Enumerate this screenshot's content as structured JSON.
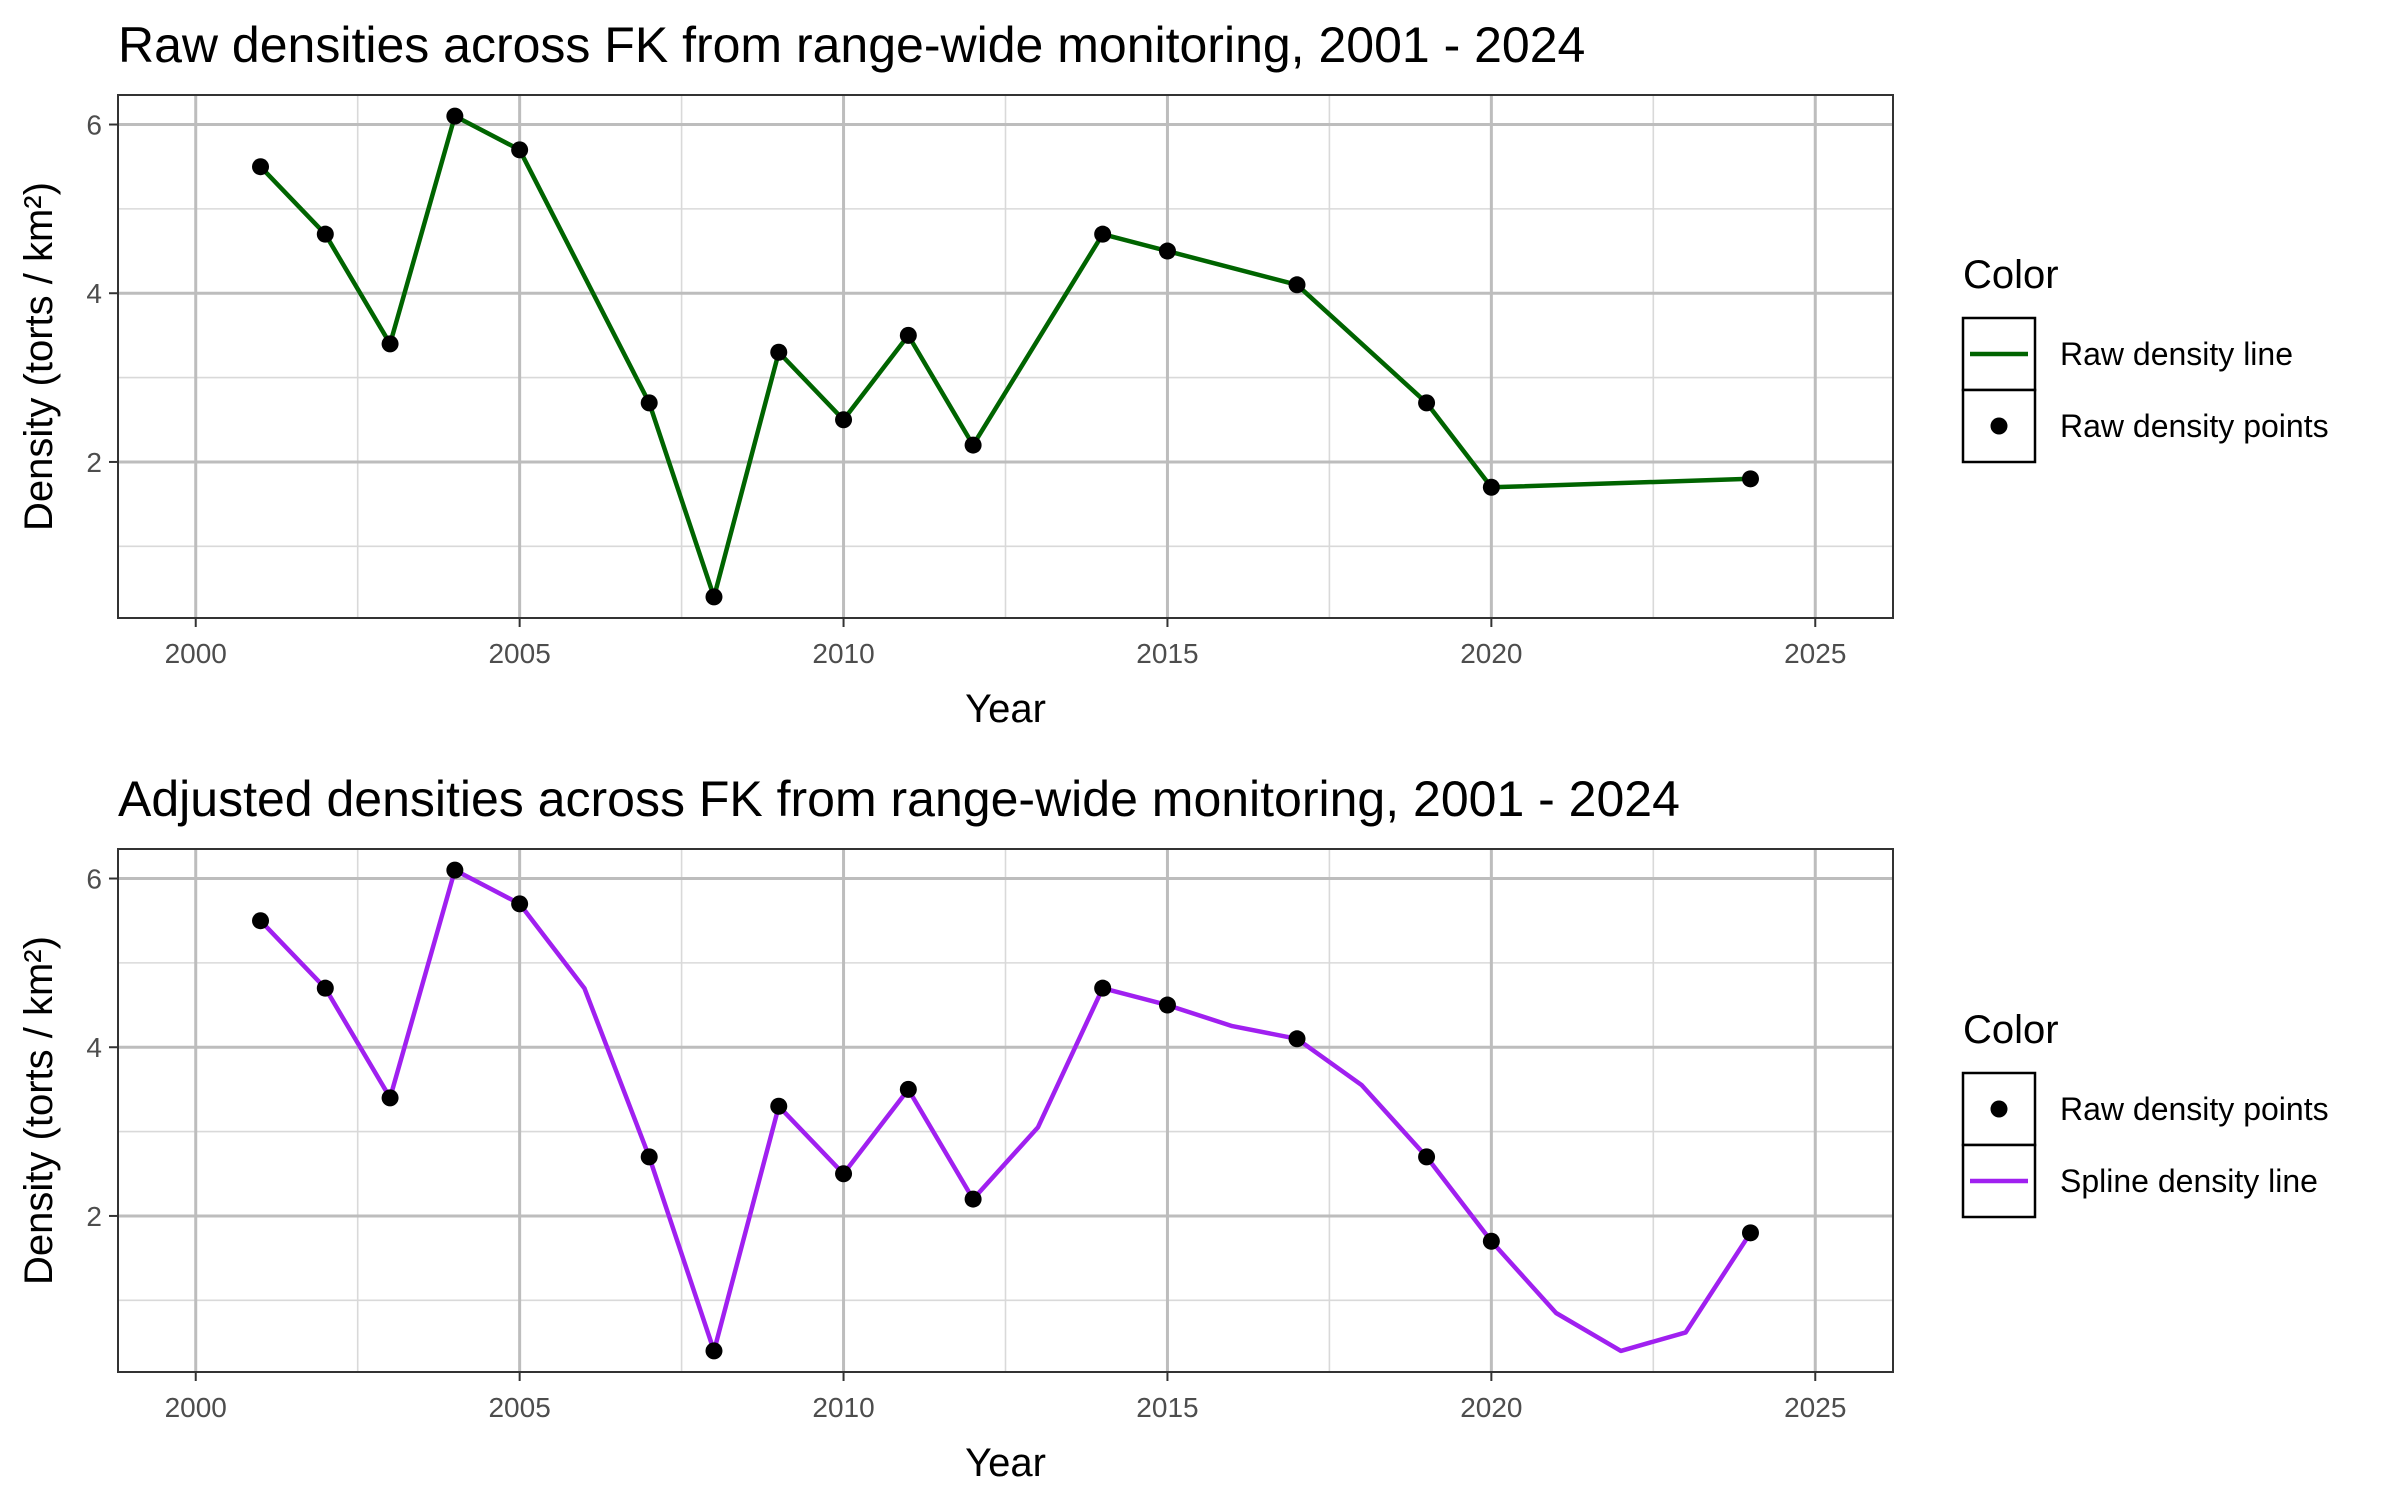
{
  "chart_data": [
    {
      "type": "line",
      "title": "Raw densities across FK from range-wide monitoring, 2001 - 2024",
      "xlabel": "Year",
      "ylabel": "Density (torts / km²)",
      "xlim": [
        1998.8,
        2026.2
      ],
      "ylim": [
        0.15,
        6.35
      ],
      "x_ticks": [
        2000,
        2005,
        2010,
        2015,
        2020,
        2025
      ],
      "y_ticks": [
        2,
        4,
        6
      ],
      "grid": true,
      "legend": {
        "title": "Color",
        "position": "right",
        "entries": [
          {
            "label": "Raw density line",
            "kind": "line",
            "color": "#006400"
          },
          {
            "label": "Raw density points",
            "kind": "point",
            "color": "#000000"
          }
        ]
      },
      "series": [
        {
          "name": "Raw density line",
          "kind": "line",
          "color": "#006400",
          "x": [
            2001,
            2002,
            2003,
            2004,
            2005,
            2007,
            2008,
            2009,
            2010,
            2011,
            2012,
            2014,
            2015,
            2017,
            2019,
            2020,
            2024
          ],
          "y": [
            5.5,
            4.7,
            3.4,
            6.1,
            5.7,
            2.7,
            0.4,
            3.3,
            2.5,
            3.5,
            2.2,
            4.7,
            4.5,
            4.1,
            2.7,
            1.7,
            1.8
          ]
        },
        {
          "name": "Raw density points",
          "kind": "point",
          "color": "#000000",
          "x": [
            2001,
            2002,
            2003,
            2004,
            2005,
            2007,
            2008,
            2009,
            2010,
            2011,
            2012,
            2014,
            2015,
            2017,
            2019,
            2020,
            2024
          ],
          "y": [
            5.5,
            4.7,
            3.4,
            6.1,
            5.7,
            2.7,
            0.4,
            3.3,
            2.5,
            3.5,
            2.2,
            4.7,
            4.5,
            4.1,
            2.7,
            1.7,
            1.8
          ]
        }
      ]
    },
    {
      "type": "line",
      "title": "Adjusted densities across FK from range-wide monitoring, 2001 - 2024",
      "xlabel": "Year",
      "ylabel": "Density (torts / km²)",
      "xlim": [
        1998.8,
        2026.2
      ],
      "ylim": [
        0.15,
        6.35
      ],
      "x_ticks": [
        2000,
        2005,
        2010,
        2015,
        2020,
        2025
      ],
      "y_ticks": [
        2,
        4,
        6
      ],
      "grid": true,
      "legend": {
        "title": "Color",
        "position": "right",
        "entries": [
          {
            "label": "Raw density points",
            "kind": "point",
            "color": "#000000"
          },
          {
            "label": "Spline density line",
            "kind": "line",
            "color": "#a020f0"
          }
        ]
      },
      "series": [
        {
          "name": "Spline density line",
          "kind": "line",
          "color": "#a020f0",
          "x": [
            2001,
            2002,
            2003,
            2004,
            2005,
            2006,
            2007,
            2008,
            2009,
            2010,
            2011,
            2012,
            2013,
            2014,
            2015,
            2016,
            2017,
            2018,
            2019,
            2020,
            2021,
            2022,
            2023,
            2024
          ],
          "y": [
            5.5,
            4.7,
            3.4,
            6.1,
            5.7,
            4.7,
            2.7,
            0.4,
            3.3,
            2.5,
            3.5,
            2.2,
            3.05,
            4.7,
            4.5,
            4.25,
            4.1,
            3.55,
            2.7,
            1.7,
            0.85,
            0.4,
            0.62,
            1.8
          ]
        },
        {
          "name": "Raw density points",
          "kind": "point",
          "color": "#000000",
          "x": [
            2001,
            2002,
            2003,
            2004,
            2005,
            2007,
            2008,
            2009,
            2010,
            2011,
            2012,
            2014,
            2015,
            2017,
            2019,
            2020,
            2024
          ],
          "y": [
            5.5,
            4.7,
            3.4,
            6.1,
            5.7,
            2.7,
            0.4,
            3.3,
            2.5,
            3.5,
            2.2,
            4.7,
            4.5,
            4.1,
            2.7,
            1.7,
            1.8
          ]
        }
      ]
    }
  ]
}
